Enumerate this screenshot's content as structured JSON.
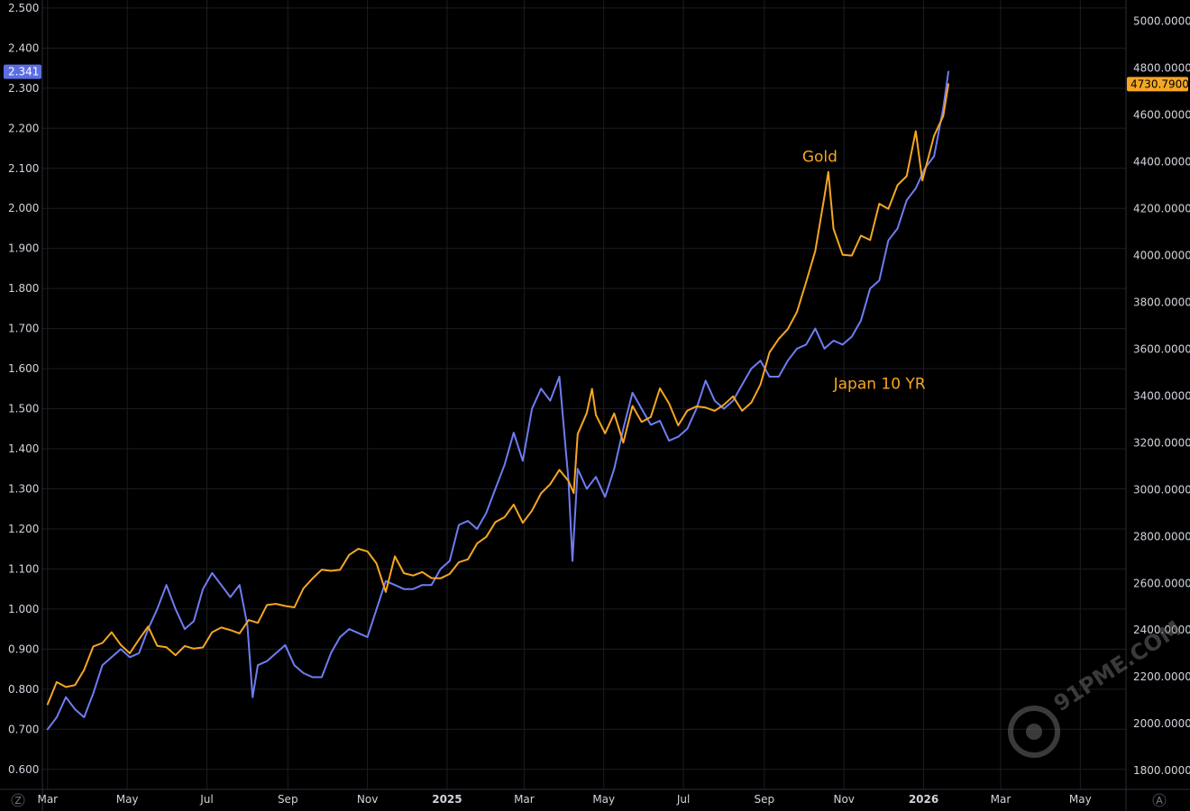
{
  "chart_data": {
    "type": "line",
    "title": "",
    "x_ticks": [
      "Mar",
      "May",
      "Jul",
      "Sep",
      "Nov",
      "2025",
      "Mar",
      "May",
      "Jul",
      "Sep",
      "Nov",
      "2026",
      "Mar",
      "May"
    ],
    "x_range": [
      "2024-02-26",
      "2026-06-05"
    ],
    "y_left": {
      "ticks": [
        "2.500",
        "2.400",
        "2.300",
        "2.200",
        "2.100",
        "2.000",
        "1.900",
        "1.800",
        "1.700",
        "1.600",
        "1.500",
        "1.400",
        "1.300",
        "1.200",
        "1.100",
        "1.000",
        "0.900",
        "0.800",
        "0.700",
        "0.600"
      ],
      "range": [
        0.55,
        2.52
      ],
      "last_value_label": "2.341"
    },
    "y_right": {
      "ticks": [
        "5000.0000",
        "4800.0000",
        "4600.0000",
        "4400.0000",
        "4200.0000",
        "4000.0000",
        "3800.0000",
        "3600.0000",
        "3400.0000",
        "3200.0000",
        "3000.0000",
        "2800.0000",
        "2600.0000",
        "2400.0000",
        "2200.0000",
        "2000.0000",
        "1800.0000"
      ],
      "range": [
        1720,
        5090
      ],
      "last_value_label": "4730.7900"
    },
    "series": [
      {
        "name": "Japan 10 YR",
        "axis": "left",
        "color": "#6f7cf2",
        "points": [
          [
            "2024-03-01",
            0.7
          ],
          [
            "2024-03-08",
            0.73
          ],
          [
            "2024-03-15",
            0.78
          ],
          [
            "2024-03-22",
            0.75
          ],
          [
            "2024-03-29",
            0.73
          ],
          [
            "2024-04-05",
            0.79
          ],
          [
            "2024-04-12",
            0.86
          ],
          [
            "2024-04-19",
            0.88
          ],
          [
            "2024-04-26",
            0.9
          ],
          [
            "2024-05-03",
            0.88
          ],
          [
            "2024-05-10",
            0.89
          ],
          [
            "2024-05-17",
            0.95
          ],
          [
            "2024-05-24",
            1.0
          ],
          [
            "2024-05-31",
            1.06
          ],
          [
            "2024-06-07",
            1.0
          ],
          [
            "2024-06-14",
            0.95
          ],
          [
            "2024-06-21",
            0.97
          ],
          [
            "2024-06-28",
            1.05
          ],
          [
            "2024-07-05",
            1.09
          ],
          [
            "2024-07-12",
            1.06
          ],
          [
            "2024-07-19",
            1.03
          ],
          [
            "2024-07-26",
            1.06
          ],
          [
            "2024-08-01",
            0.96
          ],
          [
            "2024-08-05",
            0.78
          ],
          [
            "2024-08-09",
            0.86
          ],
          [
            "2024-08-16",
            0.87
          ],
          [
            "2024-08-23",
            0.89
          ],
          [
            "2024-08-30",
            0.91
          ],
          [
            "2024-09-06",
            0.86
          ],
          [
            "2024-09-13",
            0.84
          ],
          [
            "2024-09-20",
            0.83
          ],
          [
            "2024-09-27",
            0.83
          ],
          [
            "2024-10-04",
            0.89
          ],
          [
            "2024-10-11",
            0.93
          ],
          [
            "2024-10-18",
            0.95
          ],
          [
            "2024-10-25",
            0.94
          ],
          [
            "2024-11-01",
            0.93
          ],
          [
            "2024-11-08",
            1.0
          ],
          [
            "2024-11-15",
            1.07
          ],
          [
            "2024-11-22",
            1.06
          ],
          [
            "2024-11-29",
            1.05
          ],
          [
            "2024-12-06",
            1.05
          ],
          [
            "2024-12-13",
            1.06
          ],
          [
            "2024-12-20",
            1.06
          ],
          [
            "2024-12-27",
            1.1
          ],
          [
            "2025-01-03",
            1.12
          ],
          [
            "2025-01-10",
            1.21
          ],
          [
            "2025-01-17",
            1.22
          ],
          [
            "2025-01-24",
            1.2
          ],
          [
            "2025-01-31",
            1.24
          ],
          [
            "2025-02-07",
            1.3
          ],
          [
            "2025-02-14",
            1.36
          ],
          [
            "2025-02-21",
            1.44
          ],
          [
            "2025-02-28",
            1.37
          ],
          [
            "2025-03-07",
            1.5
          ],
          [
            "2025-03-14",
            1.55
          ],
          [
            "2025-03-21",
            1.52
          ],
          [
            "2025-03-28",
            1.58
          ],
          [
            "2025-04-04",
            1.32
          ],
          [
            "2025-04-07",
            1.12
          ],
          [
            "2025-04-11",
            1.35
          ],
          [
            "2025-04-18",
            1.3
          ],
          [
            "2025-04-25",
            1.33
          ],
          [
            "2025-05-02",
            1.28
          ],
          [
            "2025-05-09",
            1.35
          ],
          [
            "2025-05-16",
            1.45
          ],
          [
            "2025-05-23",
            1.54
          ],
          [
            "2025-05-30",
            1.5
          ],
          [
            "2025-06-06",
            1.46
          ],
          [
            "2025-06-13",
            1.47
          ],
          [
            "2025-06-20",
            1.42
          ],
          [
            "2025-06-27",
            1.43
          ],
          [
            "2025-07-04",
            1.45
          ],
          [
            "2025-07-11",
            1.5
          ],
          [
            "2025-07-18",
            1.57
          ],
          [
            "2025-07-25",
            1.52
          ],
          [
            "2025-08-01",
            1.5
          ],
          [
            "2025-08-08",
            1.52
          ],
          [
            "2025-08-15",
            1.56
          ],
          [
            "2025-08-22",
            1.6
          ],
          [
            "2025-08-29",
            1.62
          ],
          [
            "2025-09-05",
            1.58
          ],
          [
            "2025-09-12",
            1.58
          ],
          [
            "2025-09-19",
            1.62
          ],
          [
            "2025-09-26",
            1.65
          ],
          [
            "2025-10-03",
            1.66
          ],
          [
            "2025-10-10",
            1.7
          ],
          [
            "2025-10-17",
            1.65
          ],
          [
            "2025-10-24",
            1.67
          ],
          [
            "2025-10-31",
            1.66
          ],
          [
            "2025-11-07",
            1.68
          ],
          [
            "2025-11-14",
            1.72
          ],
          [
            "2025-11-21",
            1.8
          ],
          [
            "2025-11-28",
            1.82
          ],
          [
            "2025-12-05",
            1.92
          ],
          [
            "2025-12-12",
            1.95
          ],
          [
            "2025-12-19",
            2.02
          ],
          [
            "2025-12-26",
            2.05
          ],
          [
            "2026-01-02",
            2.1
          ],
          [
            "2026-01-09",
            2.13
          ],
          [
            "2026-01-16",
            2.25
          ],
          [
            "2026-01-20",
            2.341
          ]
        ]
      },
      {
        "name": "Gold",
        "axis": "right",
        "color": "#f5a623",
        "points": [
          [
            "2024-03-01",
            2083
          ],
          [
            "2024-03-08",
            2178
          ],
          [
            "2024-03-15",
            2157
          ],
          [
            "2024-03-22",
            2165
          ],
          [
            "2024-03-29",
            2230
          ],
          [
            "2024-04-05",
            2330
          ],
          [
            "2024-04-12",
            2345
          ],
          [
            "2024-04-19",
            2391
          ],
          [
            "2024-04-26",
            2337
          ],
          [
            "2024-05-03",
            2301
          ],
          [
            "2024-05-10",
            2360
          ],
          [
            "2024-05-17",
            2415
          ],
          [
            "2024-05-24",
            2333
          ],
          [
            "2024-05-31",
            2327
          ],
          [
            "2024-06-07",
            2293
          ],
          [
            "2024-06-14",
            2332
          ],
          [
            "2024-06-21",
            2321
          ],
          [
            "2024-06-28",
            2326
          ],
          [
            "2024-07-05",
            2391
          ],
          [
            "2024-07-12",
            2411
          ],
          [
            "2024-07-19",
            2400
          ],
          [
            "2024-07-26",
            2386
          ],
          [
            "2024-08-02",
            2443
          ],
          [
            "2024-08-09",
            2431
          ],
          [
            "2024-08-16",
            2507
          ],
          [
            "2024-08-23",
            2512
          ],
          [
            "2024-08-30",
            2503
          ],
          [
            "2024-09-06",
            2497
          ],
          [
            "2024-09-13",
            2578
          ],
          [
            "2024-09-20",
            2621
          ],
          [
            "2024-09-27",
            2658
          ],
          [
            "2024-10-04",
            2653
          ],
          [
            "2024-10-11",
            2657
          ],
          [
            "2024-10-18",
            2721
          ],
          [
            "2024-10-25",
            2747
          ],
          [
            "2024-11-01",
            2736
          ],
          [
            "2024-11-08",
            2684
          ],
          [
            "2024-11-15",
            2563
          ],
          [
            "2024-11-22",
            2715
          ],
          [
            "2024-11-29",
            2643
          ],
          [
            "2024-12-06",
            2633
          ],
          [
            "2024-12-13",
            2648
          ],
          [
            "2024-12-20",
            2622
          ],
          [
            "2024-12-27",
            2621
          ],
          [
            "2025-01-03",
            2640
          ],
          [
            "2025-01-10",
            2690
          ],
          [
            "2025-01-17",
            2702
          ],
          [
            "2025-01-24",
            2770
          ],
          [
            "2025-01-31",
            2798
          ],
          [
            "2025-02-07",
            2861
          ],
          [
            "2025-02-14",
            2882
          ],
          [
            "2025-02-21",
            2936
          ],
          [
            "2025-02-28",
            2858
          ],
          [
            "2025-03-07",
            2910
          ],
          [
            "2025-03-14",
            2984
          ],
          [
            "2025-03-21",
            3023
          ],
          [
            "2025-03-28",
            3084
          ],
          [
            "2025-04-04",
            3037
          ],
          [
            "2025-04-08",
            2985
          ],
          [
            "2025-04-11",
            3237
          ],
          [
            "2025-04-18",
            3327
          ],
          [
            "2025-04-22",
            3430
          ],
          [
            "2025-04-25",
            3319
          ],
          [
            "2025-05-02",
            3240
          ],
          [
            "2025-05-09",
            3325
          ],
          [
            "2025-05-16",
            3200
          ],
          [
            "2025-05-23",
            3357
          ],
          [
            "2025-05-30",
            3289
          ],
          [
            "2025-06-06",
            3310
          ],
          [
            "2025-06-13",
            3432
          ],
          [
            "2025-06-20",
            3368
          ],
          [
            "2025-06-27",
            3274
          ],
          [
            "2025-07-04",
            3337
          ],
          [
            "2025-07-11",
            3355
          ],
          [
            "2025-07-18",
            3350
          ],
          [
            "2025-07-25",
            3336
          ],
          [
            "2025-08-01",
            3362
          ],
          [
            "2025-08-08",
            3398
          ],
          [
            "2025-08-15",
            3336
          ],
          [
            "2025-08-22",
            3371
          ],
          [
            "2025-08-29",
            3448
          ],
          [
            "2025-09-05",
            3586
          ],
          [
            "2025-09-12",
            3643
          ],
          [
            "2025-09-19",
            3685
          ],
          [
            "2025-09-26",
            3759
          ],
          [
            "2025-10-03",
            3886
          ],
          [
            "2025-10-10",
            4018
          ],
          [
            "2025-10-17",
            4251
          ],
          [
            "2025-10-20",
            4356
          ],
          [
            "2025-10-24",
            4113
          ],
          [
            "2025-10-31",
            4002
          ],
          [
            "2025-11-07",
            3999
          ],
          [
            "2025-11-14",
            4084
          ],
          [
            "2025-11-21",
            4065
          ],
          [
            "2025-11-28",
            4220
          ],
          [
            "2025-12-05",
            4198
          ],
          [
            "2025-12-12",
            4300
          ],
          [
            "2025-12-19",
            4338
          ],
          [
            "2025-12-26",
            4530
          ],
          [
            "2025-12-31",
            4320
          ],
          [
            "2026-01-09",
            4510
          ],
          [
            "2026-01-16",
            4595
          ],
          [
            "2026-01-20",
            4730.79
          ]
        ]
      }
    ],
    "annotations": [
      {
        "text": "Gold",
        "color": "#f5a623",
        "at": [
          "2025-09-30",
          4400
        ]
      },
      {
        "text": "Japan 10 YR",
        "color": "#f5a623",
        "at": [
          "2025-10-24",
          3430
        ]
      }
    ],
    "grid": true,
    "legend": "none",
    "watermark": "91PME.COM"
  }
}
